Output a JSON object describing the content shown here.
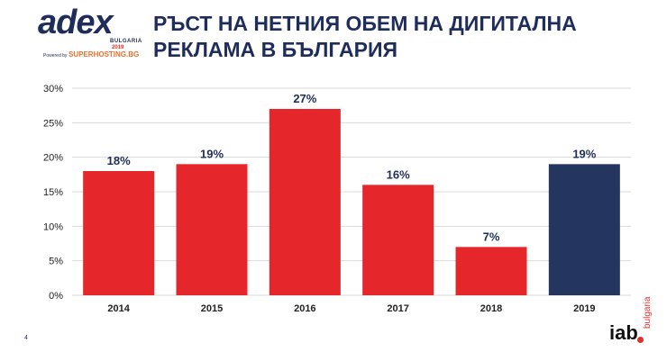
{
  "header": {
    "title": "РЪСТ НА НЕТНИЯ ОБЕМ НА ДИГИТАЛНА РЕКЛАМА В БЪЛГАРИЯ",
    "logo": {
      "name": "adex",
      "sub_country": "BULGARIA",
      "sub_year": "2019",
      "powered_by": "Powered by",
      "sponsor": "SUPERHOSTING.BG"
    }
  },
  "footer": {
    "page_number": "4",
    "brand": "iab",
    "brand_country": "bulgaria"
  },
  "colors": {
    "bar_default": "#e5262a",
    "bar_highlight": "#243560",
    "title": "#1f2d5a",
    "grid": "#d9d9d9"
  },
  "chart_data": {
    "type": "bar",
    "categories": [
      "2014",
      "2015",
      "2016",
      "2017",
      "2018",
      "2019"
    ],
    "values": [
      18,
      19,
      27,
      16,
      7,
      19
    ],
    "value_labels": [
      "18%",
      "19%",
      "27%",
      "16%",
      "7%",
      "19%"
    ],
    "bar_colors": [
      "#e5262a",
      "#e5262a",
      "#e5262a",
      "#e5262a",
      "#e5262a",
      "#243560"
    ],
    "y_ticks": [
      "0%",
      "5%",
      "10%",
      "15%",
      "20%",
      "25%",
      "30%"
    ],
    "ylim": [
      0,
      30
    ],
    "title": "",
    "xlabel": "",
    "ylabel": "",
    "grid": true,
    "legend": "none"
  }
}
